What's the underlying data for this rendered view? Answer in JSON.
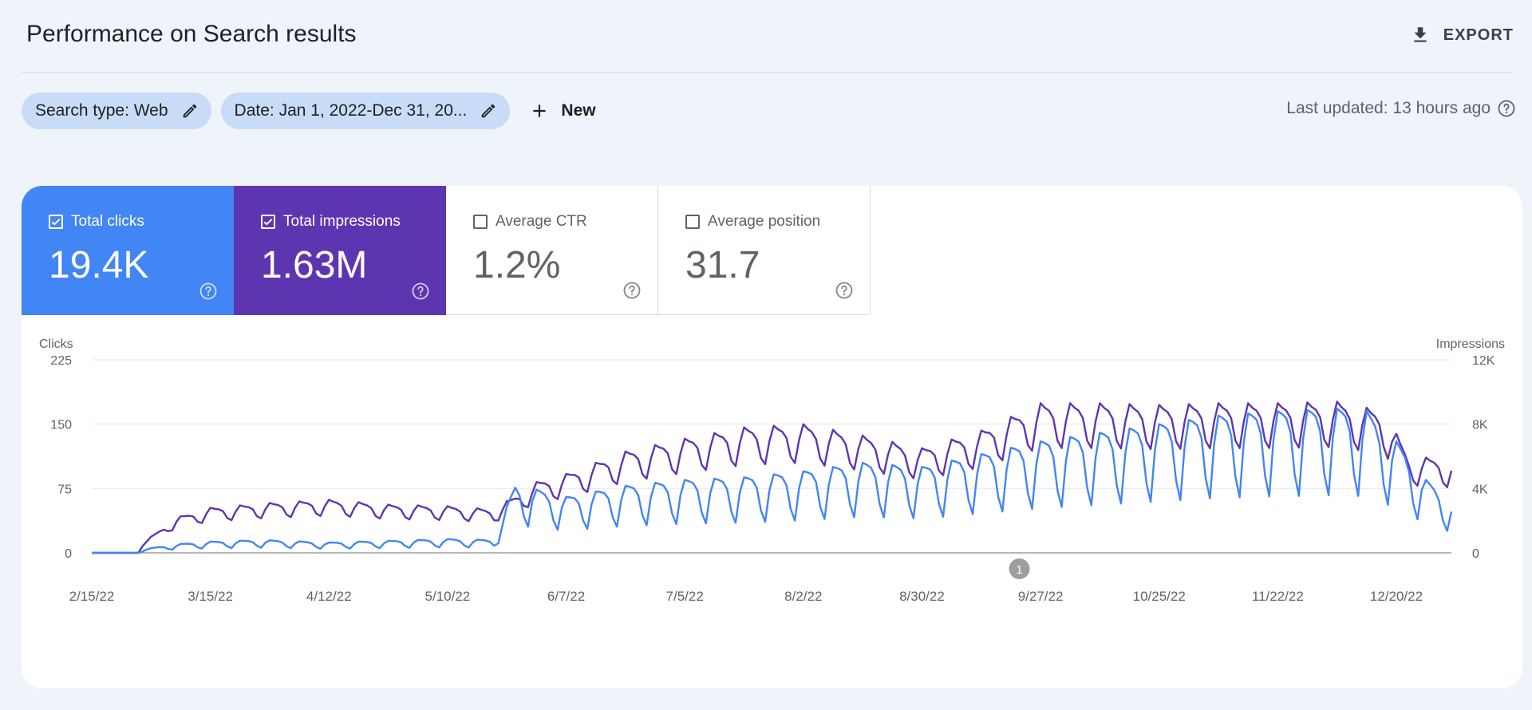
{
  "header": {
    "title": "Performance on Search results",
    "export_label": "EXPORT",
    "export_icon": "download-icon"
  },
  "filters": {
    "search_type": "Search type: Web",
    "date": "Date: Jan 1, 2022-Dec 31, 20...",
    "new_label": "New",
    "edit_icon": "pencil-icon",
    "new_icon": "plus-icon"
  },
  "last_updated": "Last updated: 13 hours ago",
  "metrics": [
    {
      "label": "Total clicks",
      "value": "19.4K",
      "checked": true,
      "color": "#4285f4"
    },
    {
      "label": "Total impressions",
      "value": "1.63M",
      "checked": true,
      "color": "#5e35b1"
    },
    {
      "label": "Average CTR",
      "value": "1.2%",
      "checked": false
    },
    {
      "label": "Average position",
      "value": "31.7",
      "checked": false
    }
  ],
  "chart_data": {
    "type": "line",
    "left_axis": {
      "label": "Clicks",
      "ticks": [
        "0",
        "75",
        "150",
        "225"
      ],
      "range": [
        0,
        225
      ]
    },
    "right_axis": {
      "label": "Impressions",
      "ticks": [
        "0",
        "4K",
        "8K",
        "12K"
      ],
      "range": [
        0,
        12000
      ]
    },
    "x_ticks": [
      "2/15/22",
      "3/15/22",
      "4/12/22",
      "5/10/22",
      "6/7/22",
      "7/5/22",
      "8/2/22",
      "8/30/22",
      "9/27/22",
      "10/25/22",
      "11/22/22",
      "12/20/22"
    ],
    "x_tick_offsets_days": [
      0,
      28,
      56,
      84,
      112,
      140,
      168,
      196,
      224,
      252,
      280,
      308
    ],
    "x_range_days": [
      0,
      321
    ],
    "annotation": {
      "label": "1",
      "day": 219
    },
    "grid": true,
    "legend": "none",
    "series": [
      {
        "name": "Total clicks",
        "axis": "left",
        "color": "#4285f4",
        "weekly_pattern": [
          1.0,
          0.98,
          0.95,
          0.85,
          0.55,
          0.4,
          0.8
        ],
        "peak_points": [
          [
            0,
            0
          ],
          [
            11,
            0
          ],
          [
            12,
            4
          ],
          [
            20,
            10
          ],
          [
            28,
            13
          ],
          [
            40,
            15
          ],
          [
            56,
            12
          ],
          [
            70,
            14
          ],
          [
            84,
            16
          ],
          [
            95,
            15
          ],
          [
            100,
            80
          ],
          [
            112,
            65
          ],
          [
            126,
            78
          ],
          [
            140,
            85
          ],
          [
            154,
            88
          ],
          [
            168,
            95
          ],
          [
            182,
            105
          ],
          [
            196,
            100
          ],
          [
            210,
            115
          ],
          [
            224,
            130
          ],
          [
            238,
            140
          ],
          [
            252,
            150
          ],
          [
            266,
            160
          ],
          [
            280,
            165
          ],
          [
            294,
            168
          ],
          [
            301,
            165
          ],
          [
            308,
            130
          ],
          [
            315,
            85
          ],
          [
            321,
            60
          ]
        ]
      },
      {
        "name": "Total impressions",
        "axis": "right",
        "color": "#5e35b1",
        "weekly_pattern": [
          1.0,
          0.97,
          0.95,
          0.9,
          0.75,
          0.7,
          0.88
        ],
        "peak_points": [
          [
            0,
            0
          ],
          [
            11,
            0
          ],
          [
            12,
            600
          ],
          [
            20,
            2200
          ],
          [
            28,
            2800
          ],
          [
            42,
            3100
          ],
          [
            56,
            3300
          ],
          [
            70,
            3000
          ],
          [
            84,
            2900
          ],
          [
            95,
            2700
          ],
          [
            105,
            4400
          ],
          [
            112,
            4900
          ],
          [
            126,
            6300
          ],
          [
            140,
            7100
          ],
          [
            154,
            7800
          ],
          [
            168,
            8000
          ],
          [
            182,
            7300
          ],
          [
            196,
            6500
          ],
          [
            210,
            7600
          ],
          [
            224,
            9300
          ],
          [
            238,
            9300
          ],
          [
            252,
            9200
          ],
          [
            266,
            9300
          ],
          [
            280,
            9300
          ],
          [
            294,
            9400
          ],
          [
            305,
            8800
          ],
          [
            311,
            6000
          ],
          [
            321,
            5800
          ]
        ]
      }
    ]
  }
}
